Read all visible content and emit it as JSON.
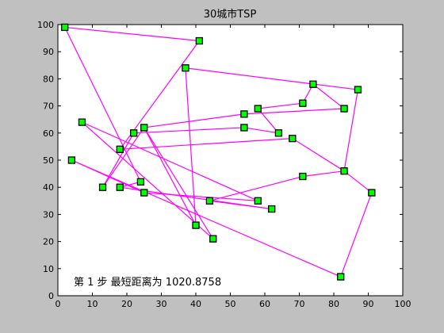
{
  "window": {
    "background": "#c0c0c0"
  },
  "chart_data": {
    "type": "line",
    "title": "30城市TSP",
    "xlabel": "",
    "ylabel": "",
    "xlim": [
      0,
      100
    ],
    "ylim": [
      0,
      100
    ],
    "xticks": [
      0,
      10,
      20,
      30,
      40,
      50,
      60,
      70,
      80,
      90,
      100
    ],
    "yticks": [
      0,
      10,
      20,
      30,
      40,
      50,
      60,
      70,
      80,
      90,
      100
    ],
    "grid": false,
    "annotation": "第 1 步  最短距离为 1020.8758",
    "route_color": "#ff00ff",
    "marker_fill": "#00ff00",
    "marker_edge": "#000000",
    "route": [
      [
        2,
        99
      ],
      [
        41,
        94
      ],
      [
        18,
        54
      ],
      [
        68,
        58
      ],
      [
        83,
        46
      ],
      [
        91,
        38
      ],
      [
        82,
        7
      ],
      [
        4,
        50
      ],
      [
        25,
        38
      ],
      [
        58,
        35
      ],
      [
        7,
        64
      ],
      [
        45,
        21
      ],
      [
        25,
        62
      ],
      [
        13,
        40
      ],
      [
        22,
        60
      ],
      [
        54,
        62
      ],
      [
        64,
        60
      ],
      [
        58,
        69
      ],
      [
        71,
        71
      ],
      [
        74,
        78
      ],
      [
        83,
        69
      ],
      [
        54,
        67
      ],
      [
        25,
        62
      ],
      [
        40,
        26
      ],
      [
        37,
        84
      ],
      [
        87,
        76
      ],
      [
        83,
        46
      ],
      [
        71,
        44
      ],
      [
        44,
        35
      ],
      [
        62,
        32
      ],
      [
        18,
        40
      ],
      [
        24,
        42
      ],
      [
        2,
        99
      ]
    ],
    "cities": [
      [
        2,
        99
      ],
      [
        41,
        94
      ],
      [
        37,
        84
      ],
      [
        87,
        76
      ],
      [
        74,
        78
      ],
      [
        71,
        71
      ],
      [
        83,
        69
      ],
      [
        58,
        69
      ],
      [
        54,
        67
      ],
      [
        7,
        64
      ],
      [
        25,
        62
      ],
      [
        54,
        62
      ],
      [
        22,
        60
      ],
      [
        64,
        60
      ],
      [
        68,
        58
      ],
      [
        18,
        54
      ],
      [
        4,
        50
      ],
      [
        83,
        46
      ],
      [
        71,
        44
      ],
      [
        24,
        42
      ],
      [
        13,
        40
      ],
      [
        18,
        40
      ],
      [
        25,
        38
      ],
      [
        91,
        38
      ],
      [
        44,
        35
      ],
      [
        58,
        35
      ],
      [
        62,
        32
      ],
      [
        40,
        26
      ],
      [
        45,
        21
      ],
      [
        82,
        7
      ]
    ]
  }
}
